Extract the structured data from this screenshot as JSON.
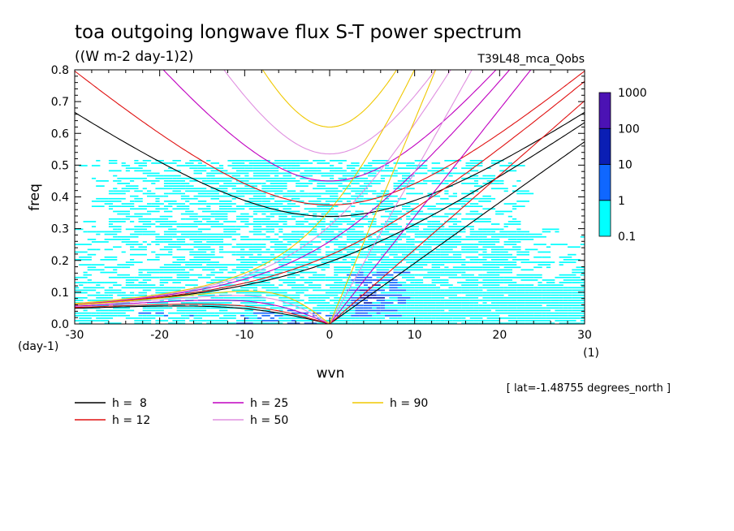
{
  "chart_data": {
    "type": "heatmap",
    "title": "toa outgoing longwave flux S-T power spectrum",
    "subtitle": "((W m-2 day-1)2)",
    "run_label": "T39L48_mca_Qobs",
    "xlabel": "wvn",
    "ylabel": "freq",
    "x_unit": "(1)",
    "y_unit": "(day-1)",
    "footnote": "[ lat=-1.48755 degrees_north ]",
    "xlim": [
      -30,
      30
    ],
    "ylim": [
      0,
      0.8
    ],
    "x_ticks": [
      -30,
      -20,
      -10,
      0,
      10,
      20,
      30
    ],
    "x_tick_labels": [
      "-30",
      "-20",
      "-10",
      "0",
      "10",
      "20",
      "30"
    ],
    "y_ticks": [
      0,
      0.1,
      0.2,
      0.3,
      0.4,
      0.5,
      0.6,
      0.7,
      0.8
    ],
    "y_tick_labels": [
      "0.0",
      "0.1",
      "0.2",
      "0.3",
      "0.4",
      "0.5",
      "0.6",
      "0.7",
      "0.8"
    ],
    "colorbar": {
      "labels": [
        "0.1",
        "1",
        "10",
        "100",
        "1000"
      ],
      "colors": [
        "#00ffff",
        "#0f67ff",
        "#0a1eb4",
        "#4b12b4"
      ]
    },
    "dispersion_curves": [
      {
        "name": "h =  8",
        "h": 8,
        "color": "#000000"
      },
      {
        "name": "h = 12",
        "h": 12,
        "color": "#e01010"
      },
      {
        "name": "h = 25",
        "h": 25,
        "color": "#c000c0"
      },
      {
        "name": "h = 50",
        "h": 50,
        "color": "#e090e0"
      },
      {
        "name": "h = 90",
        "h": 90,
        "color": "#f0c800"
      }
    ]
  }
}
